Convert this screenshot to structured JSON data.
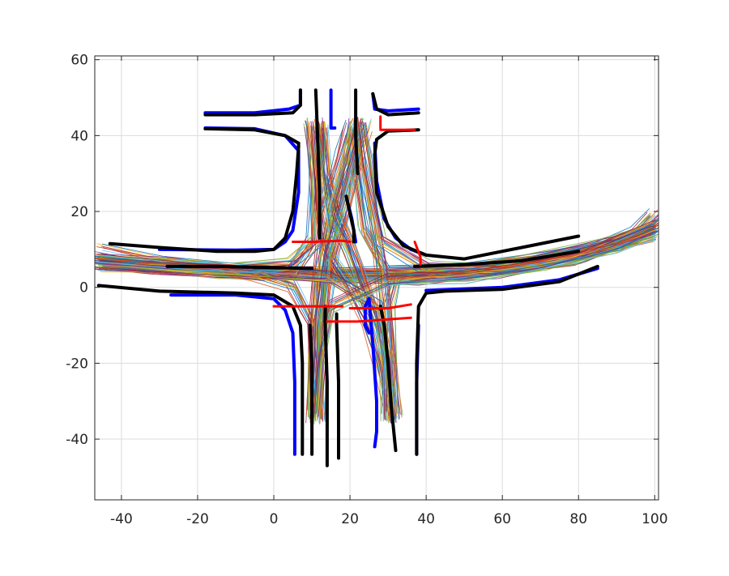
{
  "chart_data": {
    "type": "line",
    "title": "",
    "xlabel": "",
    "ylabel": "",
    "xlim": [
      -47,
      101
    ],
    "ylim": [
      -56,
      61
    ],
    "x_ticks": [
      -40,
      -20,
      0,
      20,
      40,
      60,
      80,
      100
    ],
    "y_ticks": [
      60,
      40,
      20,
      0,
      -20,
      -40
    ],
    "x_tick_labels": [
      "-40",
      "-20",
      "0",
      "20",
      "40",
      "60",
      "80",
      "100"
    ],
    "y_tick_labels": [
      "60",
      "40",
      "20",
      "0",
      "-20",
      "-40"
    ],
    "grid": true,
    "legend": "none",
    "colors": {
      "road_edge_black": "#000000",
      "road_edge_blue": "#0000ff",
      "stop_line_red": "#ff0000",
      "trajectory_palette": [
        "#0072bd",
        "#d95319",
        "#edb120",
        "#7e2f8e",
        "#77ac30",
        "#4dbeee",
        "#a2142f"
      ]
    },
    "road_edges_black": [
      {
        "x": [
          -43,
          -30,
          -15,
          -5,
          0,
          3,
          5
        ],
        "y": [
          11.5,
          10.5,
          9.5,
          9.5,
          10,
          13,
          20
        ]
      },
      {
        "x": [
          5,
          6,
          6.5,
          6.5
        ],
        "y": [
          20,
          30,
          37,
          38
        ]
      },
      {
        "x": [
          6.5,
          3,
          -5,
          -18
        ],
        "y": [
          38,
          40,
          41.5,
          41.8
        ]
      },
      {
        "x": [
          -18,
          -5,
          5,
          7,
          7
        ],
        "y": [
          45.5,
          45.5,
          46,
          48,
          52
        ]
      },
      {
        "x": [
          11,
          11.5,
          12,
          12
        ],
        "y": [
          52,
          40,
          25,
          13
        ]
      },
      {
        "x": [
          21.5,
          21.5,
          22
        ],
        "y": [
          52,
          40,
          30
        ]
      },
      {
        "x": [
          26,
          27,
          30,
          38
        ],
        "y": [
          51,
          47,
          45.5,
          46
        ]
      },
      {
        "x": [
          38,
          30,
          27,
          26.5,
          27,
          30,
          34,
          40,
          50,
          80
        ],
        "y": [
          41.5,
          41.2,
          39,
          35,
          25,
          16,
          11,
          8.5,
          7.5,
          13.5
        ]
      },
      {
        "x": [
          -46,
          -30,
          -10,
          0,
          5,
          7,
          7.5,
          7.5
        ],
        "y": [
          0.5,
          -1,
          -1.5,
          -2,
          -5,
          -10,
          -20,
          -44
        ]
      },
      {
        "x": [
          10,
          10,
          9.5
        ],
        "y": [
          -44,
          -20,
          -10
        ]
      },
      {
        "x": [
          14,
          14,
          13.5,
          13.5
        ],
        "y": [
          -47,
          -25,
          -10,
          -5
        ]
      },
      {
        "x": [
          17,
          17,
          16.5,
          16.5
        ],
        "y": [
          -45,
          -25,
          -10,
          -7
        ]
      },
      {
        "x": [
          32,
          31,
          30,
          29,
          28
        ],
        "y": [
          -43,
          -33,
          -20,
          -10,
          -5
        ]
      },
      {
        "x": [
          37.5,
          37.5,
          38,
          40,
          45,
          60,
          75,
          85
        ],
        "y": [
          -44,
          -20,
          -5,
          -1.5,
          -1,
          -0.5,
          1.5,
          5.5
        ]
      },
      {
        "x": [
          37,
          50,
          65,
          80
        ],
        "y": [
          5.5,
          6,
          7,
          9.5
        ]
      },
      {
        "x": [
          -28,
          -15,
          0,
          10
        ],
        "y": [
          5.5,
          5.5,
          5.2,
          5
        ]
      },
      {
        "x": [
          19,
          21,
          21
        ],
        "y": [
          24,
          15,
          12
        ]
      }
    ],
    "road_edges_blue": [
      {
        "x": [
          -18,
          -5,
          4,
          7,
          7
        ],
        "y": [
          46,
          46,
          47,
          48,
          52
        ]
      },
      {
        "x": [
          -18,
          -5,
          3,
          6.5,
          6.5,
          5,
          3,
          0,
          -10,
          -30
        ],
        "y": [
          42,
          41.8,
          40,
          36,
          25,
          15,
          12,
          10,
          9.8,
          10
        ]
      },
      {
        "x": [
          15,
          15,
          16
        ],
        "y": [
          52,
          42,
          42
        ]
      },
      {
        "x": [
          26,
          26.5,
          30,
          38
        ],
        "y": [
          51,
          47,
          46.5,
          47
        ]
      },
      {
        "x": [
          26.5,
          27,
          29,
          32,
          36,
          40
        ],
        "y": [
          38,
          28,
          18,
          13,
          10,
          8.5
        ]
      },
      {
        "x": [
          19,
          20.5,
          21.5
        ],
        "y": [
          24,
          18,
          12
        ]
      },
      {
        "x": [
          -27,
          -10,
          0,
          3,
          5,
          5.5,
          5.5
        ],
        "y": [
          -2,
          -2,
          -3,
          -6,
          -12,
          -25,
          -44
        ]
      },
      {
        "x": [
          25,
          24,
          24,
          25,
          26,
          27,
          27,
          26.5
        ],
        "y": [
          -12,
          -10,
          -5,
          -3,
          -15,
          -30,
          -38,
          -42
        ]
      },
      {
        "x": [
          38,
          37.5,
          37.5
        ],
        "y": [
          -10,
          -25,
          -44
        ]
      },
      {
        "x": [
          40,
          60,
          75,
          85
        ],
        "y": [
          -0.8,
          0,
          2,
          5
        ]
      }
    ],
    "stop_lines_red": [
      {
        "x": [
          5,
          10,
          18,
          20
        ],
        "y": [
          12,
          12,
          12.3,
          12
        ]
      },
      {
        "x": [
          28,
          37
        ],
        "y": [
          41.5,
          41.5
        ]
      },
      {
        "x": [
          28,
          28
        ],
        "y": [
          45,
          42
        ]
      },
      {
        "x": [
          37,
          38.5,
          38.5
        ],
        "y": [
          12,
          8,
          6
        ]
      },
      {
        "x": [
          0,
          5,
          18
        ],
        "y": [
          -5,
          -5,
          -5
        ]
      },
      {
        "x": [
          14,
          22,
          36
        ],
        "y": [
          -9,
          -9,
          -8
        ]
      },
      {
        "x": [
          20,
          30,
          36
        ],
        "y": [
          -5.5,
          -5.5,
          -4.5
        ]
      }
    ],
    "trajectory_bundles": [
      {
        "x": [
          -46,
          -30,
          -10,
          5,
          20,
          40,
          60,
          80,
          95,
          100
        ],
        "y": [
          6.5,
          5.5,
          4.5,
          3.5,
          3,
          3,
          4.5,
          8,
          14,
          19
        ]
      },
      {
        "x": [
          -46,
          -30,
          -10,
          5,
          20,
          40,
          60,
          80,
          95,
          100
        ],
        "y": [
          6,
          5,
          4,
          3,
          2.5,
          2.5,
          4,
          7.5,
          13,
          17
        ]
      },
      {
        "x": [
          100,
          90,
          70,
          50,
          30,
          10,
          -10,
          -30,
          -46
        ],
        "y": [
          16,
          12,
          7.5,
          5,
          4,
          4,
          4.5,
          6.5,
          10
        ]
      },
      {
        "x": [
          100,
          90,
          70,
          50,
          30,
          10,
          -10,
          -28
        ],
        "y": [
          15,
          11,
          7,
          4.5,
          3.5,
          3.5,
          4,
          6
        ]
      },
      {
        "x": [
          -46,
          -30,
          -15,
          -5,
          5,
          10,
          12
        ],
        "y": [
          6,
          5,
          4,
          3.5,
          4,
          12,
          42
        ]
      },
      {
        "x": [
          -46,
          -30,
          -15,
          -5,
          5,
          10,
          11,
          12
        ],
        "y": [
          7,
          6,
          5,
          3,
          0,
          -10,
          -25,
          -34
        ]
      },
      {
        "x": [
          100,
          85,
          65,
          45,
          30,
          24,
          22,
          22
        ],
        "y": [
          14,
          10,
          6,
          4,
          4,
          15,
          30,
          43
        ]
      },
      {
        "x": [
          100,
          85,
          65,
          45,
          32,
          30,
          31,
          32
        ],
        "y": [
          15,
          11,
          7,
          4,
          2,
          -5,
          -25,
          -34
        ]
      },
      {
        "x": [
          10,
          10.5,
          11,
          12,
          14,
          16,
          18,
          20,
          22
        ],
        "y": [
          -34,
          -20,
          -10,
          0,
          10,
          20,
          30,
          38,
          43
        ]
      },
      {
        "x": [
          12,
          12.5,
          13,
          14,
          16,
          18,
          20,
          21
        ],
        "y": [
          -34,
          -20,
          -10,
          0,
          10,
          20,
          30,
          43
        ]
      },
      {
        "x": [
          30,
          29,
          27,
          24,
          20,
          16,
          13,
          12
        ],
        "y": [
          -34,
          -20,
          -10,
          0,
          10,
          20,
          30,
          43
        ]
      },
      {
        "x": [
          32,
          31,
          28,
          24,
          20,
          16,
          14,
          13
        ],
        "y": [
          -34,
          -20,
          -10,
          0,
          10,
          20,
          30,
          43
        ]
      },
      {
        "x": [
          20,
          18,
          14,
          12,
          11,
          11
        ],
        "y": [
          43,
          35,
          20,
          5,
          -15,
          -34
        ]
      },
      {
        "x": [
          23,
          24,
          26,
          28,
          30,
          31
        ],
        "y": [
          43,
          35,
          20,
          5,
          -15,
          -34
        ]
      },
      {
        "x": [
          10,
          11,
          13,
          15,
          20,
          25,
          28,
          31
        ],
        "y": [
          43,
          35,
          20,
          8,
          0,
          -10,
          -20,
          -34
        ]
      },
      {
        "x": [
          24,
          22,
          18,
          14,
          12,
          11
        ],
        "y": [
          43,
          35,
          20,
          8,
          -10,
          -34
        ]
      },
      {
        "x": [
          10,
          11,
          12,
          5,
          -10,
          -30,
          -46
        ],
        "y": [
          43,
          30,
          12,
          6,
          5,
          6,
          7
        ]
      },
      {
        "x": [
          22,
          24,
          28,
          40,
          60,
          80,
          100
        ],
        "y": [
          43,
          30,
          12,
          5,
          4.5,
          8,
          16
        ]
      },
      {
        "x": [
          30,
          30,
          28,
          15,
          0,
          -20,
          -46
        ],
        "y": [
          -34,
          -20,
          -5,
          3,
          4,
          5,
          7
        ]
      },
      {
        "x": [
          11,
          12,
          15,
          30,
          50,
          70,
          90,
          100
        ],
        "y": [
          -34,
          -20,
          -5,
          2,
          3,
          6,
          11,
          15
        ]
      }
    ]
  }
}
